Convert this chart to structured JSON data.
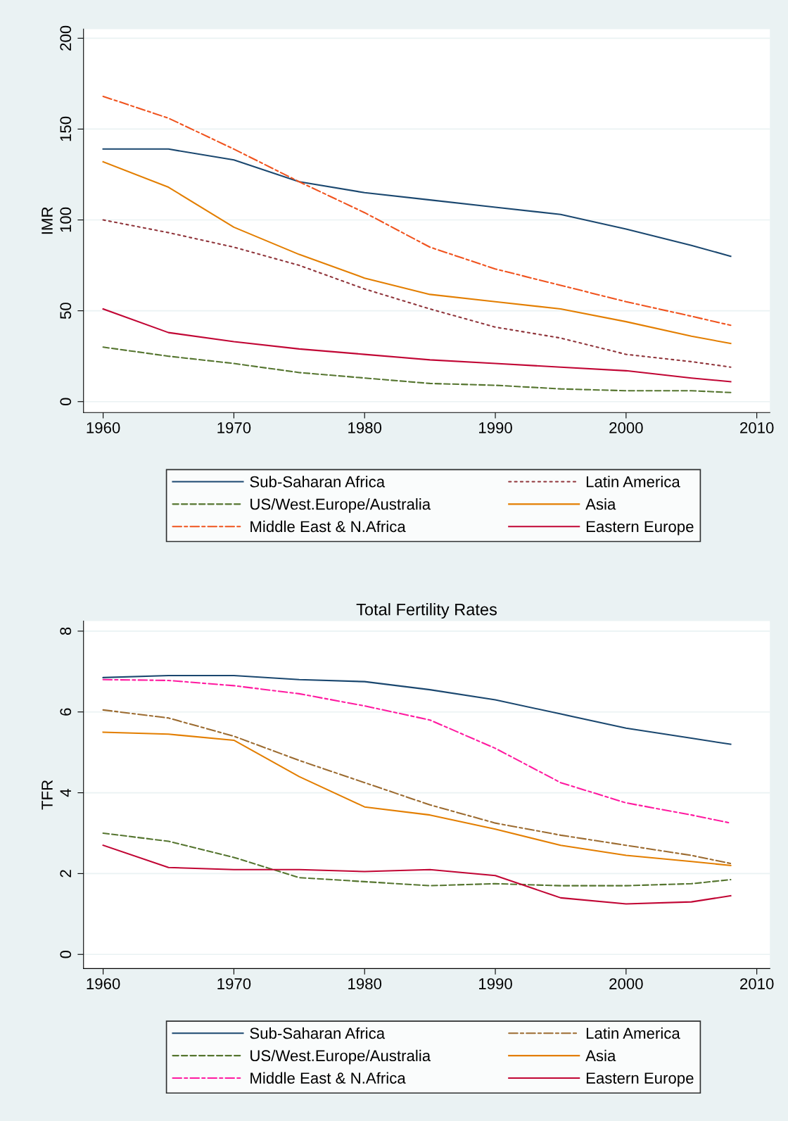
{
  "chart_data": [
    {
      "type": "line",
      "ylabel": "IMR",
      "x": [
        1960,
        1965,
        1970,
        1975,
        1980,
        1985,
        1990,
        1995,
        2000,
        2005,
        2008
      ],
      "xlim": [
        1958.5,
        2011
      ],
      "xticks": [
        1960,
        1970,
        1980,
        1990,
        2000,
        2010
      ],
      "ylim": [
        -6,
        205
      ],
      "yticks": [
        0,
        50,
        100,
        150,
        200
      ],
      "grid": "y",
      "legend": "bottom",
      "series": [
        {
          "name": "Sub-Saharan Africa",
          "color": "#1a476f",
          "line_style": "solid",
          "values": [
            139,
            139,
            133,
            121,
            115,
            111,
            107,
            103,
            95,
            86,
            80
          ]
        },
        {
          "name": "US/West.Europe/Australia",
          "color": "#55752f",
          "line_style": "dashed",
          "values": [
            30,
            25,
            21,
            16,
            13,
            10,
            9,
            7,
            6,
            6,
            5
          ]
        },
        {
          "name": "Middle East & N.Africa",
          "color": "#f0531e",
          "line_style": "dashdot",
          "values": [
            168,
            156,
            139,
            121,
            104,
            85,
            73,
            64,
            55,
            47,
            42
          ]
        },
        {
          "name": "Latin America",
          "color": "#90353b",
          "line_style": "dotted",
          "values": [
            100,
            93,
            85,
            75,
            62,
            51,
            41,
            35,
            26,
            22,
            19
          ]
        },
        {
          "name": "Asia",
          "color": "#e37e00",
          "line_style": "solid",
          "values": [
            132,
            118,
            96,
            81,
            68,
            59,
            55,
            51,
            44,
            36,
            32
          ]
        },
        {
          "name": "Eastern Europe",
          "color": "#c10534",
          "line_style": "solid",
          "values": [
            51,
            38,
            33,
            29,
            26,
            23,
            21,
            19,
            17,
            13,
            11
          ]
        }
      ]
    },
    {
      "type": "line",
      "title": "Total Fertility Rates",
      "ylabel": "TFR",
      "x": [
        1960,
        1965,
        1970,
        1975,
        1980,
        1985,
        1990,
        1995,
        2000,
        2005,
        2008
      ],
      "xlim": [
        1958.5,
        2011
      ],
      "xticks": [
        1960,
        1970,
        1980,
        1990,
        2000,
        2010
      ],
      "ylim": [
        -0.35,
        8.25
      ],
      "yticks": [
        0,
        2,
        4,
        6,
        8
      ],
      "grid": "y",
      "legend": "bottom",
      "series": [
        {
          "name": "Sub-Saharan Africa",
          "color": "#1a476f",
          "line_style": "solid",
          "values": [
            6.85,
            6.9,
            6.9,
            6.8,
            6.75,
            6.55,
            6.3,
            5.95,
            5.6,
            5.35,
            5.2
          ]
        },
        {
          "name": "US/West.Europe/Australia",
          "color": "#55752f",
          "line_style": "dashed",
          "values": [
            3.0,
            2.8,
            2.4,
            1.9,
            1.8,
            1.7,
            1.75,
            1.7,
            1.7,
            1.75,
            1.85
          ]
        },
        {
          "name": "Middle East & N.Africa",
          "color": "#ff1aa0",
          "line_style": "dashdot",
          "values": [
            6.8,
            6.78,
            6.65,
            6.45,
            6.15,
            5.8,
            5.1,
            4.25,
            3.75,
            3.45,
            3.25
          ]
        },
        {
          "name": "Latin America",
          "color": "#9c6b30",
          "line_style": "dashdot",
          "values": [
            6.05,
            5.85,
            5.4,
            4.8,
            4.25,
            3.7,
            3.25,
            2.95,
            2.7,
            2.45,
            2.25
          ]
        },
        {
          "name": "Asia",
          "color": "#e37e00",
          "line_style": "solid",
          "values": [
            5.5,
            5.45,
            5.3,
            4.4,
            3.65,
            3.45,
            3.1,
            2.7,
            2.45,
            2.3,
            2.2
          ]
        },
        {
          "name": "Eastern Europe",
          "color": "#c10534",
          "line_style": "solid",
          "values": [
            2.7,
            2.15,
            2.1,
            2.1,
            2.05,
            2.1,
            1.95,
            1.4,
            1.25,
            1.3,
            1.45
          ]
        }
      ]
    }
  ]
}
